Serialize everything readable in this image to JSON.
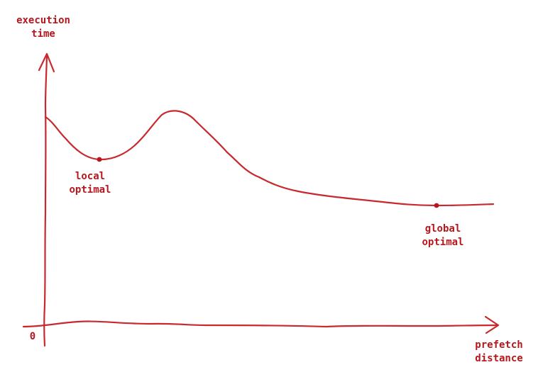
{
  "y_axis": {
    "label_line1": "execution",
    "label_line2": "time"
  },
  "x_axis": {
    "label_line1": "prefetch",
    "label_line2": "distance",
    "origin": "0"
  },
  "annotations": {
    "local": {
      "line1": "local",
      "line2": "optimal"
    },
    "global": {
      "line1": "global",
      "line2": "optimal"
    }
  },
  "colors": {
    "ink": "#c8292e",
    "text": "#b5171d"
  }
}
